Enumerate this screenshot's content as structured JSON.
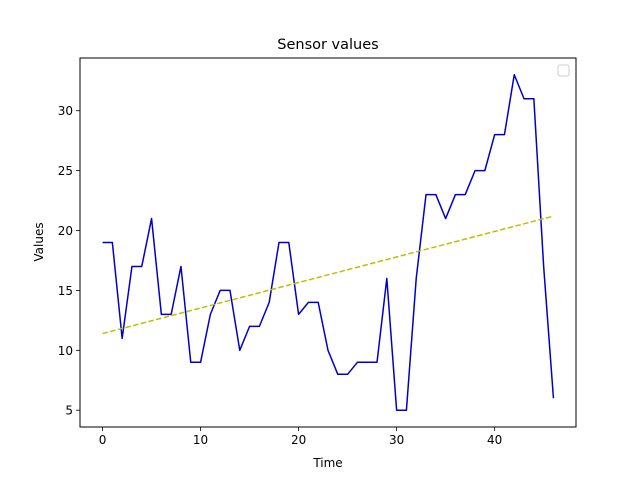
{
  "chart_data": {
    "type": "line",
    "title": "Sensor values",
    "xlabel": "Time",
    "ylabel": "Values",
    "xlim": [
      -2.3,
      48.3
    ],
    "ylim": [
      3.6,
      34.4
    ],
    "x_ticks": [
      0,
      10,
      20,
      30,
      40
    ],
    "y_ticks": [
      5,
      10,
      15,
      20,
      25,
      30
    ],
    "grid": false,
    "legend": "top-right (empty)",
    "series": [
      {
        "color": "#0000cc",
        "style": "solid",
        "x": [
          0,
          1,
          2,
          3,
          4,
          5,
          6,
          7,
          8,
          9,
          10,
          11,
          12,
          13,
          14,
          15,
          16,
          17,
          18,
          19,
          20,
          21,
          22,
          23,
          24,
          25,
          26,
          27,
          28,
          29,
          30,
          31,
          32,
          33,
          34,
          35,
          36,
          37,
          38,
          39,
          40,
          41,
          42,
          43,
          44,
          45,
          46
        ],
        "values": [
          19,
          19,
          11,
          17,
          17,
          21,
          13,
          13,
          17,
          9,
          9,
          13,
          15,
          15,
          10,
          12,
          12,
          14,
          19,
          19,
          13,
          14,
          14,
          10,
          8,
          8,
          9,
          9,
          9,
          16,
          5,
          5,
          16,
          23,
          23,
          21,
          23,
          23,
          25,
          25,
          28,
          28,
          33,
          31,
          31,
          17,
          6
        ]
      },
      {
        "color": "#bfbf00",
        "style": "dashed",
        "x": [
          0,
          46
        ],
        "values": [
          11.4,
          21.2
        ]
      }
    ]
  }
}
